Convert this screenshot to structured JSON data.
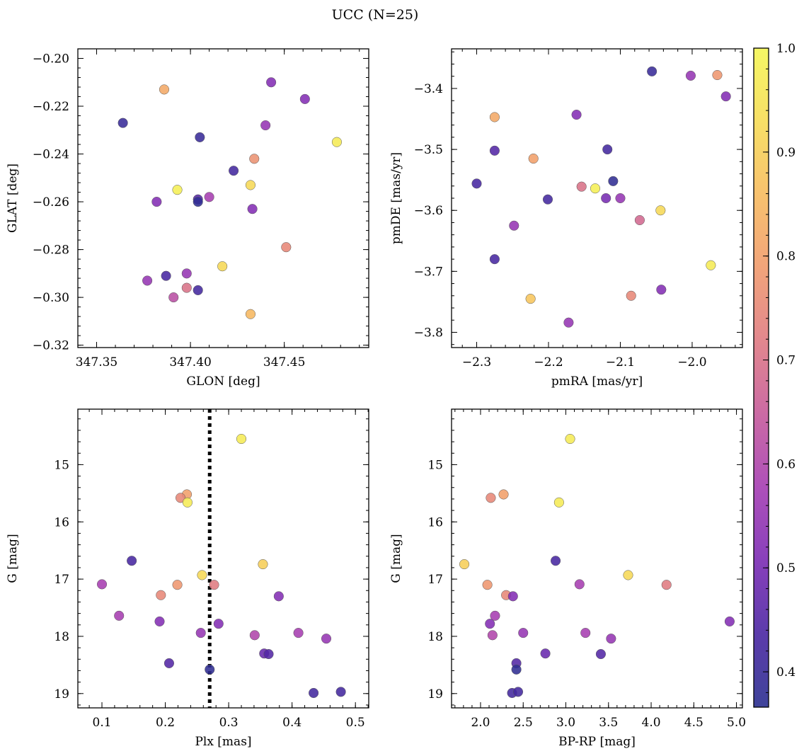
{
  "figure": {
    "title": "UCC (N=25)"
  },
  "colorbar": {
    "range": [
      0.366,
      1.0
    ],
    "ticks": [
      0.4,
      0.5,
      0.6,
      0.7,
      0.8,
      0.9,
      1.0
    ],
    "tick_labels": [
      "0.4",
      "0.5",
      "0.6",
      "0.7",
      "0.8",
      "0.9",
      "1.0"
    ],
    "colormap": "plasma",
    "colormap_stops": [
      "#2a2f8f",
      "#4a26a2",
      "#7b2bb4",
      "#a53db2",
      "#c55a9a",
      "#df7a82",
      "#f09a6c",
      "#f7bb5e",
      "#f6dc56",
      "#f4f654"
    ]
  },
  "chart_data": [
    {
      "type": "scatter",
      "title": "",
      "xlabel": "GLON [deg]",
      "ylabel": "GLAT [deg]",
      "xlim": [
        347.34,
        347.495
      ],
      "ylim": [
        -0.321,
        -0.196
      ],
      "xticks": [
        347.35,
        347.4,
        347.45
      ],
      "xtick_labels": [
        "347.35",
        "347.40",
        "347.45"
      ],
      "yticks": [
        -0.32,
        -0.3,
        -0.28,
        -0.26,
        -0.24,
        -0.22,
        -0.2
      ],
      "ytick_labels": [
        "−0.32",
        "−0.30",
        "−0.28",
        "−0.26",
        "−0.24",
        "−0.22",
        "−0.20"
      ],
      "grid": false,
      "points": [
        {
          "x": 347.386,
          "y": -0.213,
          "c": 0.82
        },
        {
          "x": 347.443,
          "y": -0.21,
          "c": 0.52
        },
        {
          "x": 347.461,
          "y": -0.217,
          "c": 0.52
        },
        {
          "x": 347.364,
          "y": -0.227,
          "c": 0.4
        },
        {
          "x": 347.44,
          "y": -0.228,
          "c": 0.55
        },
        {
          "x": 347.405,
          "y": -0.233,
          "c": 0.4
        },
        {
          "x": 347.478,
          "y": -0.235,
          "c": 0.97
        },
        {
          "x": 347.434,
          "y": -0.242,
          "c": 0.77
        },
        {
          "x": 347.423,
          "y": -0.247,
          "c": 0.42
        },
        {
          "x": 347.432,
          "y": -0.253,
          "c": 0.92
        },
        {
          "x": 347.393,
          "y": -0.255,
          "c": 0.98
        },
        {
          "x": 347.41,
          "y": -0.258,
          "c": 0.58
        },
        {
          "x": 347.404,
          "y": -0.259,
          "c": 0.45
        },
        {
          "x": 347.404,
          "y": -0.26,
          "c": 0.38
        },
        {
          "x": 347.382,
          "y": -0.26,
          "c": 0.52
        },
        {
          "x": 347.433,
          "y": -0.263,
          "c": 0.52
        },
        {
          "x": 347.451,
          "y": -0.279,
          "c": 0.75
        },
        {
          "x": 347.417,
          "y": -0.287,
          "c": 0.92
        },
        {
          "x": 347.387,
          "y": -0.291,
          "c": 0.43
        },
        {
          "x": 347.398,
          "y": -0.29,
          "c": 0.55
        },
        {
          "x": 347.377,
          "y": -0.293,
          "c": 0.55
        },
        {
          "x": 347.398,
          "y": -0.296,
          "c": 0.7
        },
        {
          "x": 347.404,
          "y": -0.297,
          "c": 0.42
        },
        {
          "x": 347.391,
          "y": -0.3,
          "c": 0.62
        },
        {
          "x": 347.432,
          "y": -0.307,
          "c": 0.85
        }
      ]
    },
    {
      "type": "scatter",
      "title": "",
      "xlabel": "pmRA [mas/yr]",
      "ylabel": "pmDE [mas/yr]",
      "xlim": [
        -2.335,
        -1.93
      ],
      "ylim": [
        -3.825,
        -3.335
      ],
      "xticks": [
        -2.3,
        -2.2,
        -2.1,
        -2.0
      ],
      "xtick_labels": [
        "−2.3",
        "−2.2",
        "−2.1",
        "−2.0"
      ],
      "yticks": [
        -3.8,
        -3.7,
        -3.6,
        -3.5,
        -3.4
      ],
      "ytick_labels": [
        "−3.8",
        "−3.7",
        "−3.6",
        "−3.5",
        "−3.4"
      ],
      "grid": false,
      "points": [
        {
          "x": -2.056,
          "y": -3.372,
          "c": 0.4
        },
        {
          "x": -2.002,
          "y": -3.379,
          "c": 0.55
        },
        {
          "x": -1.965,
          "y": -3.378,
          "c": 0.78
        },
        {
          "x": -1.953,
          "y": -3.413,
          "c": 0.52
        },
        {
          "x": -2.275,
          "y": -3.447,
          "c": 0.82
        },
        {
          "x": -2.161,
          "y": -3.443,
          "c": 0.52
        },
        {
          "x": -2.275,
          "y": -3.502,
          "c": 0.45
        },
        {
          "x": -2.118,
          "y": -3.5,
          "c": 0.42
        },
        {
          "x": -2.221,
          "y": -3.515,
          "c": 0.8
        },
        {
          "x": -2.11,
          "y": -3.552,
          "c": 0.38
        },
        {
          "x": -2.3,
          "y": -3.556,
          "c": 0.43
        },
        {
          "x": -2.154,
          "y": -3.561,
          "c": 0.7
        },
        {
          "x": -2.135,
          "y": -3.564,
          "c": 0.98
        },
        {
          "x": -2.201,
          "y": -3.582,
          "c": 0.42
        },
        {
          "x": -2.12,
          "y": -3.58,
          "c": 0.5
        },
        {
          "x": -2.1,
          "y": -3.58,
          "c": 0.55
        },
        {
          "x": -2.044,
          "y": -3.6,
          "c": 0.92
        },
        {
          "x": -2.073,
          "y": -3.616,
          "c": 0.68
        },
        {
          "x": -2.248,
          "y": -3.625,
          "c": 0.55
        },
        {
          "x": -2.275,
          "y": -3.68,
          "c": 0.43
        },
        {
          "x": -1.974,
          "y": -3.69,
          "c": 0.97
        },
        {
          "x": -2.043,
          "y": -3.73,
          "c": 0.52
        },
        {
          "x": -2.085,
          "y": -3.74,
          "c": 0.75
        },
        {
          "x": -2.225,
          "y": -3.745,
          "c": 0.88
        },
        {
          "x": -2.172,
          "y": -3.784,
          "c": 0.55
        }
      ]
    },
    {
      "type": "scatter",
      "title": "",
      "xlabel": "Plx [mas]",
      "ylabel": "G [mag]",
      "xlim": [
        0.062,
        0.521
      ],
      "ylim": [
        19.25,
        14.03
      ],
      "y_inverted": true,
      "xticks": [
        0.1,
        0.2,
        0.3,
        0.4,
        0.5
      ],
      "xtick_labels": [
        "0.1",
        "0.2",
        "0.3",
        "0.4",
        "0.5"
      ],
      "yticks": [
        15,
        16,
        17,
        18,
        19
      ],
      "ytick_labels": [
        "15",
        "16",
        "17",
        "18",
        "19"
      ],
      "grid": false,
      "reference_line": {
        "orientation": "vertical",
        "x": 0.27,
        "style": "dotted",
        "color": "#000000"
      },
      "points": [
        {
          "x": 0.32,
          "y": 14.55,
          "c": 0.97
        },
        {
          "x": 0.234,
          "y": 15.52,
          "c": 0.8
        },
        {
          "x": 0.224,
          "y": 15.58,
          "c": 0.75
        },
        {
          "x": 0.235,
          "y": 15.66,
          "c": 0.97
        },
        {
          "x": 0.147,
          "y": 16.68,
          "c": 0.43
        },
        {
          "x": 0.354,
          "y": 16.74,
          "c": 0.9
        },
        {
          "x": 0.258,
          "y": 16.93,
          "c": 0.92
        },
        {
          "x": 0.1,
          "y": 17.09,
          "c": 0.58
        },
        {
          "x": 0.219,
          "y": 17.1,
          "c": 0.78
        },
        {
          "x": 0.277,
          "y": 17.1,
          "c": 0.72
        },
        {
          "x": 0.193,
          "y": 17.28,
          "c": 0.75
        },
        {
          "x": 0.379,
          "y": 17.3,
          "c": 0.52
        },
        {
          "x": 0.127,
          "y": 17.64,
          "c": 0.58
        },
        {
          "x": 0.191,
          "y": 17.74,
          "c": 0.52
        },
        {
          "x": 0.284,
          "y": 17.78,
          "c": 0.52
        },
        {
          "x": 0.256,
          "y": 17.94,
          "c": 0.55
        },
        {
          "x": 0.41,
          "y": 17.94,
          "c": 0.58
        },
        {
          "x": 0.341,
          "y": 17.98,
          "c": 0.6
        },
        {
          "x": 0.454,
          "y": 18.04,
          "c": 0.55
        },
        {
          "x": 0.356,
          "y": 18.3,
          "c": 0.48
        },
        {
          "x": 0.363,
          "y": 18.31,
          "c": 0.45
        },
        {
          "x": 0.206,
          "y": 18.47,
          "c": 0.45
        },
        {
          "x": 0.27,
          "y": 18.58,
          "c": 0.38
        },
        {
          "x": 0.434,
          "y": 18.99,
          "c": 0.42
        },
        {
          "x": 0.477,
          "y": 18.97,
          "c": 0.42
        }
      ]
    },
    {
      "type": "scatter",
      "title": "",
      "xlabel": "BP-RP [mag]",
      "ylabel": "G [mag]",
      "xlim": [
        1.66,
        5.07
      ],
      "ylim": [
        19.25,
        14.03
      ],
      "y_inverted": true,
      "xticks": [
        2.0,
        2.5,
        3.0,
        3.5,
        4.0,
        4.5,
        5.0
      ],
      "xtick_labels": [
        "2.0",
        "2.5",
        "3.0",
        "3.5",
        "4.0",
        "4.5",
        "5.0"
      ],
      "yticks": [
        15,
        16,
        17,
        18,
        19
      ],
      "ytick_labels": [
        "15",
        "16",
        "17",
        "18",
        "19"
      ],
      "grid": false,
      "points": [
        {
          "x": 3.05,
          "y": 14.55,
          "c": 0.97
        },
        {
          "x": 2.27,
          "y": 15.52,
          "c": 0.8
        },
        {
          "x": 2.12,
          "y": 15.58,
          "c": 0.75
        },
        {
          "x": 2.92,
          "y": 15.66,
          "c": 0.97
        },
        {
          "x": 2.88,
          "y": 16.68,
          "c": 0.43
        },
        {
          "x": 1.81,
          "y": 16.74,
          "c": 0.9
        },
        {
          "x": 3.73,
          "y": 16.93,
          "c": 0.92
        },
        {
          "x": 3.16,
          "y": 17.09,
          "c": 0.58
        },
        {
          "x": 2.08,
          "y": 17.1,
          "c": 0.78
        },
        {
          "x": 4.18,
          "y": 17.1,
          "c": 0.72
        },
        {
          "x": 2.3,
          "y": 17.28,
          "c": 0.75
        },
        {
          "x": 2.38,
          "y": 17.3,
          "c": 0.52
        },
        {
          "x": 2.17,
          "y": 17.64,
          "c": 0.58
        },
        {
          "x": 2.11,
          "y": 17.78,
          "c": 0.52
        },
        {
          "x": 4.92,
          "y": 17.74,
          "c": 0.52
        },
        {
          "x": 2.5,
          "y": 17.94,
          "c": 0.55
        },
        {
          "x": 3.23,
          "y": 17.94,
          "c": 0.58
        },
        {
          "x": 2.14,
          "y": 17.98,
          "c": 0.6
        },
        {
          "x": 3.53,
          "y": 18.04,
          "c": 0.55
        },
        {
          "x": 2.76,
          "y": 18.3,
          "c": 0.48
        },
        {
          "x": 3.41,
          "y": 18.31,
          "c": 0.45
        },
        {
          "x": 2.42,
          "y": 18.47,
          "c": 0.45
        },
        {
          "x": 2.42,
          "y": 18.58,
          "c": 0.38
        },
        {
          "x": 2.37,
          "y": 18.99,
          "c": 0.42
        },
        {
          "x": 2.44,
          "y": 18.97,
          "c": 0.42
        }
      ]
    }
  ]
}
